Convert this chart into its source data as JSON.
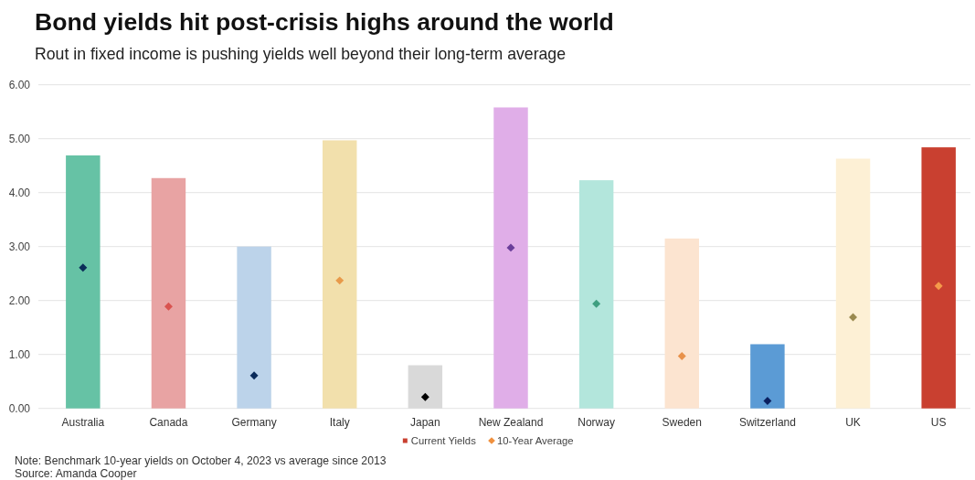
{
  "chart_data": {
    "type": "bar",
    "title": "Bond yields hit post-crisis highs around the world",
    "subtitle": "Rout in fixed income is pushing yields well beyond their long-term average",
    "categories": [
      "Australia",
      "Canada",
      "Germany",
      "Italy",
      "Japan",
      "New Zealand",
      "Norway",
      "Sweden",
      "Switzerland",
      "UK",
      "US"
    ],
    "series": [
      {
        "name": "Current Yields",
        "type": "bar",
        "color": "#c94030",
        "colors": [
          "#66c2a5",
          "#e8a3a3",
          "#bcd3ea",
          "#f2e0ac",
          "#d9d9d9",
          "#e0aee8",
          "#b3e6dc",
          "#fce4d0",
          "#5b9bd5",
          "#fdf0d5",
          "#c94030"
        ],
        "values": [
          4.69,
          4.27,
          3.0,
          4.97,
          0.8,
          5.58,
          4.23,
          3.15,
          1.19,
          4.63,
          4.84
        ]
      },
      {
        "name": "10-Year Average",
        "type": "scatter",
        "color": "#f0913f",
        "colors": [
          "#0b2e59",
          "#d9534f",
          "#0a2a5a",
          "#e89a4a",
          "#000000",
          "#6a3d9a",
          "#3f9f80",
          "#e8914a",
          "#0a2060",
          "#9a8a50",
          "#f59a4a"
        ],
        "values": [
          2.61,
          1.89,
          0.61,
          2.37,
          0.21,
          2.98,
          1.94,
          0.97,
          0.14,
          1.69,
          2.27
        ]
      }
    ],
    "ylim": [
      0,
      6
    ],
    "yticks": [
      {
        "value": 0,
        "label": "0.00"
      },
      {
        "value": 1,
        "label": "1.00"
      },
      {
        "value": 2,
        "label": "2.00"
      },
      {
        "value": 3,
        "label": "3.00"
      },
      {
        "value": 4,
        "label": "4.00"
      },
      {
        "value": 5,
        "label": "5.00"
      },
      {
        "value": 6,
        "label": "6.00"
      }
    ],
    "grid": "y",
    "legend": "bottom",
    "marker": "diamond",
    "annotations": [
      "Note: Benchmark 10-year yields on October 4, 2023 vs average since 2013",
      "Source: Amanda Cooper"
    ]
  }
}
